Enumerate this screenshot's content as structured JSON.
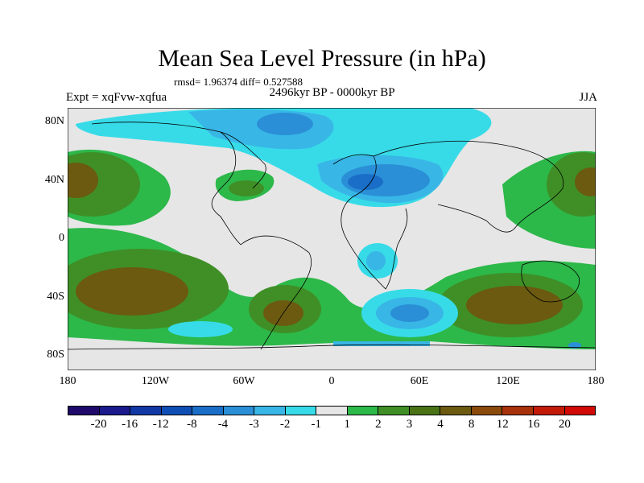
{
  "title": "Mean Sea Level Pressure (in hPa)",
  "stats": "rmsd= 1.96374 diff= 0.527588",
  "period": "2496kyr BP - 0000kyr BP",
  "experiment": "Expt = xqFvw-xqfua",
  "season": "JJA",
  "lat_ticks": [
    "80N",
    "40N",
    "0",
    "40S",
    "80S"
  ],
  "lon_ticks": [
    "180",
    "120W",
    "60W",
    "0",
    "60E",
    "120E",
    "180"
  ],
  "colorbar": {
    "colors": [
      "#1f0a6b",
      "#1a1a8c",
      "#1238a6",
      "#0f4fb5",
      "#1a6ec7",
      "#2a8fd6",
      "#38b6e6",
      "#37dbe8",
      "#e6e6e6",
      "#2db84a",
      "#3f8f26",
      "#4a7316",
      "#6b5a10",
      "#8a4a0c",
      "#a8320a",
      "#c41a08",
      "#d10a06"
    ],
    "labels": [
      "-20",
      "-16",
      "-12",
      "-8",
      "-4",
      "-3",
      "-2",
      "-1",
      "1",
      "2",
      "3",
      "4",
      "8",
      "12",
      "16",
      "20"
    ]
  },
  "map_colors": {
    "neutral": "#e6e6e6",
    "blue_light": "#37dbe8",
    "blue_mid": "#38b6e6",
    "blue_strong": "#2a8fd6",
    "blue_deep": "#1a6ec7",
    "green": "#2db84a",
    "green_dark": "#3f8f26",
    "olive": "#6b5a10",
    "brown": "#7a4a10",
    "coast": "#000000"
  }
}
